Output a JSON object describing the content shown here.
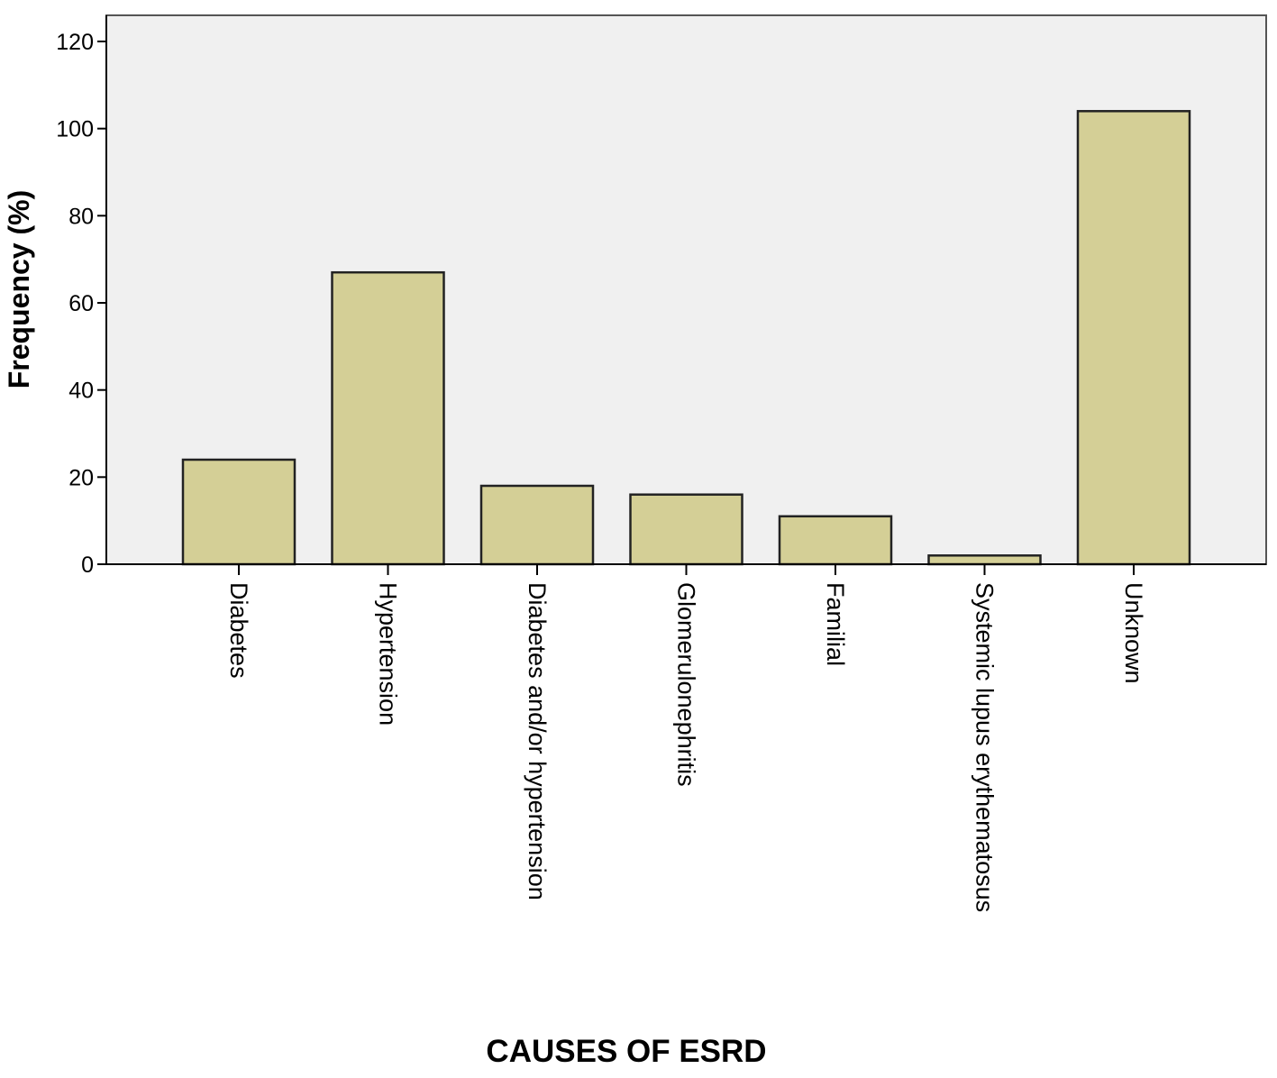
{
  "chart_data": {
    "type": "bar",
    "title": "",
    "xlabel": "CAUSES OF ESRD",
    "ylabel": "Frequency (%)",
    "categories": [
      "Diabetes",
      "Hypertension",
      "Diabetes and/or hypertension",
      "Glomerulonephritis",
      "Familial",
      "Systemic lupus erythematosus",
      "Unknown"
    ],
    "values": [
      24,
      67,
      18,
      16,
      11,
      2,
      104
    ],
    "ylim": [
      0,
      126
    ],
    "yticks": [
      0,
      20,
      40,
      60,
      80,
      100,
      120
    ],
    "grid": false,
    "legend": "none",
    "colors": {
      "bar_fill": "#d4cf96",
      "bar_stroke": "#222222",
      "plot_background": "#f0f0f0",
      "axis": "#000000"
    }
  }
}
